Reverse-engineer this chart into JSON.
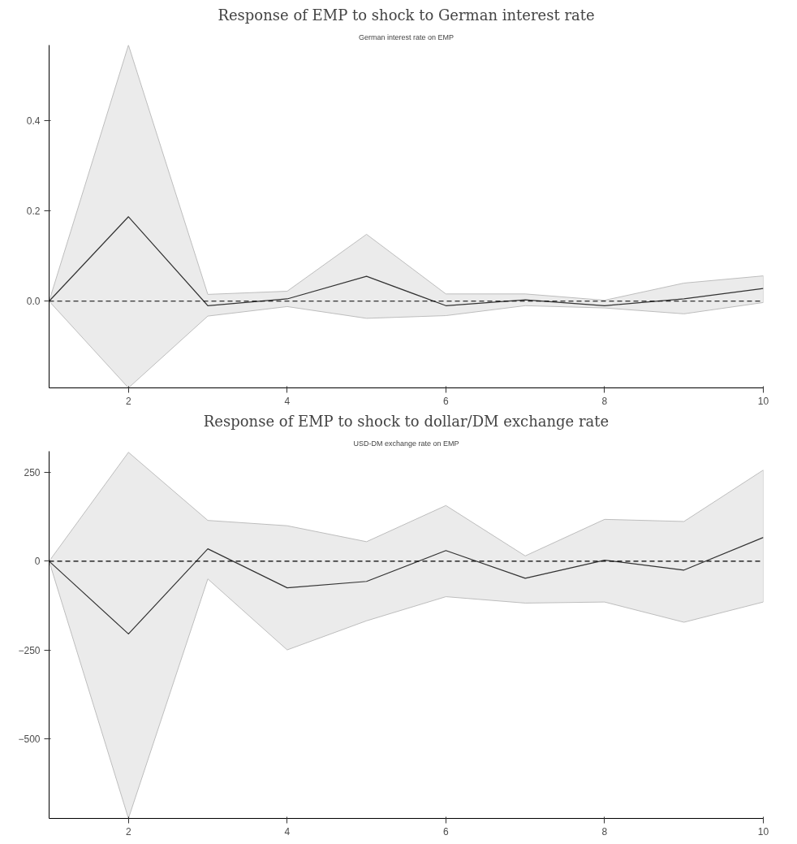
{
  "chart_data": [
    {
      "type": "line",
      "title": "Response of EMP to shock to German interest rate",
      "subtitle": "German interest rate on EMP",
      "x": [
        1,
        2,
        3,
        4,
        5,
        6,
        7,
        8,
        9,
        10
      ],
      "series": [
        {
          "color": "#333333",
          "values": [
            0,
            0.187,
            -0.01,
            0.005,
            0.055,
            -0.01,
            0.003,
            -0.01,
            0.005,
            0.028
          ],
          "lower": [
            0,
            -0.192,
            -0.033,
            -0.012,
            -0.038,
            -0.032,
            -0.01,
            -0.015,
            -0.028,
            -0.003
          ],
          "upper": [
            0,
            0.567,
            0.015,
            0.022,
            0.148,
            0.016,
            0.016,
            0.002,
            0.04,
            0.056
          ]
        }
      ],
      "ref_lines": [
        {
          "axis": "y",
          "value": 0,
          "color": "#000000",
          "line_style": "dashed"
        }
      ],
      "xlim": [
        1,
        10
      ],
      "ylim": [
        -0.192,
        0.567
      ],
      "xticks": [
        2,
        4,
        6,
        8,
        10
      ],
      "yticks": [
        {
          "value": 0,
          "label": "0.0"
        },
        {
          "value": 0.2,
          "label": "0.2"
        },
        {
          "value": 0.4,
          "label": "0.4"
        }
      ],
      "grid": false,
      "marker": "none",
      "line_style": "solid"
    },
    {
      "type": "line",
      "title": "Response of EMP to shock to dollar/DM exchange rate",
      "subtitle": "USD-DM exchange rate on EMP",
      "x": [
        1,
        2,
        3,
        4,
        5,
        6,
        7,
        8,
        9,
        10
      ],
      "series": [
        {
          "color": "#333333",
          "values": [
            0,
            -205,
            35,
            -75,
            -57,
            30,
            -48,
            3,
            -25,
            67
          ],
          "lower": [
            0,
            -725,
            -50,
            -250,
            -168,
            -100,
            -118,
            -115,
            -172,
            -115
          ],
          "upper": [
            0,
            307,
            115,
            100,
            55,
            157,
            15,
            118,
            112,
            257
          ]
        }
      ],
      "ref_lines": [
        {
          "axis": "y",
          "value": 0,
          "color": "#000000",
          "line_style": "dashed"
        }
      ],
      "xlim": [
        1,
        10
      ],
      "ylim": [
        -725,
        310
      ],
      "xticks": [
        2,
        4,
        6,
        8,
        10
      ],
      "yticks": [
        -500,
        -250,
        0,
        250
      ],
      "grid": false,
      "marker": "none",
      "line_style": "solid"
    }
  ]
}
